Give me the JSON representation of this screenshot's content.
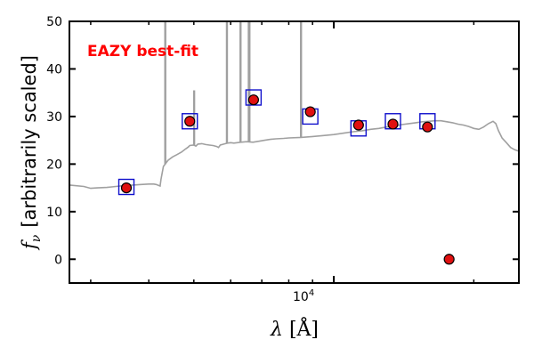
{
  "chart_data": {
    "type": "scatter",
    "title": "",
    "xlabel": "λ [Å]",
    "ylabel": "f_ν [arbitrarily scaled]",
    "ylabel_symbol": "f",
    "ylabel_subscript": "ν",
    "ylabel_text": "[arbitrarily scaled]",
    "xlabel_symbol": "λ",
    "xlabel_unit": "[Å]",
    "xscale": "log",
    "xlim": [
      2700,
      25000
    ],
    "ylim": [
      -5,
      50
    ],
    "grid": false,
    "y_ticks": [
      0,
      10,
      20,
      30,
      40,
      50
    ],
    "y_tick_labels": [
      "0",
      "10",
      "20",
      "30",
      "40",
      "50"
    ],
    "x_tick_major": [
      10000
    ],
    "x_tick_major_base": "10",
    "x_tick_major_exp": "4",
    "x_tick_minor": [
      3000,
      4000,
      5000,
      6000,
      7000,
      8000,
      9000,
      20000
    ],
    "annotation": {
      "text": "EAZY best-fit",
      "color": "#ff0000"
    },
    "colors": {
      "template": "#a0a0a0",
      "observed_fill": "#e01010",
      "observed_edge": "#000000",
      "model_box": "#1010cc"
    },
    "series": [
      {
        "kind": "template",
        "x": [
          2700,
          2900,
          3000,
          3100,
          3250,
          3400,
          3550,
          3700,
          3850,
          4000,
          4100,
          4150,
          4200,
          4230,
          4250,
          4300,
          4400,
          4500,
          4600,
          4700,
          4800,
          4850,
          4900,
          5000,
          5050,
          5100,
          5200,
          5300,
          5400,
          5500,
          5600,
          5650,
          5700,
          5800,
          5900,
          6000,
          6100,
          6300,
          6500,
          6700,
          6900,
          7100,
          7300,
          7500,
          7800,
          8000,
          8500,
          9000,
          9500,
          10000,
          10500,
          11000,
          11500,
          12000,
          12500,
          13000,
          13500,
          14000,
          14500,
          15000,
          15500,
          16000,
          16500,
          17000,
          17500,
          18000,
          18500,
          19000,
          19500,
          20000,
          20500,
          21000,
          21500,
          22000,
          22300,
          22600,
          23000,
          23500,
          24000,
          24500,
          25000
        ],
        "y": [
          15.6,
          15.3,
          14.9,
          15.0,
          15.1,
          15.3,
          15.5,
          15.6,
          15.7,
          15.8,
          15.8,
          15.7,
          15.5,
          15.4,
          16.8,
          19.5,
          20.8,
          21.5,
          22.0,
          22.5,
          23.2,
          23.5,
          23.9,
          24.0,
          23.8,
          24.2,
          24.3,
          24.1,
          24.0,
          23.9,
          23.7,
          23.5,
          24.0,
          24.2,
          24.4,
          24.5,
          24.4,
          24.6,
          24.7,
          24.6,
          24.8,
          25.0,
          25.2,
          25.3,
          25.4,
          25.5,
          25.6,
          25.8,
          26.0,
          26.2,
          26.5,
          26.8,
          27.0,
          27.3,
          27.5,
          27.8,
          28.0,
          28.3,
          28.5,
          28.7,
          28.9,
          29.0,
          29.1,
          29.1,
          28.9,
          28.7,
          28.4,
          28.2,
          27.9,
          27.5,
          27.3,
          27.8,
          28.5,
          29.0,
          28.5,
          27.0,
          25.5,
          24.5,
          23.5,
          23.0,
          22.7
        ]
      },
      {
        "kind": "emission_lines",
        "x": [
          4340,
          4861,
          4959,
          5007,
          5890,
          6300,
          6563,
          6584,
          8500
        ],
        "peak_y": [
          50,
          23.5,
          24,
          35.5,
          50,
          50,
          50,
          50,
          50
        ]
      },
      {
        "kind": "observed",
        "x": [
          3580,
          4900,
          6720,
          8900,
          11300,
          13400,
          15900,
          17700
        ],
        "y": [
          15.0,
          29.0,
          33.5,
          31.0,
          28.2,
          28.4,
          27.8,
          0
        ]
      },
      {
        "kind": "model",
        "x": [
          3580,
          4900,
          6720,
          8900,
          11300,
          13400,
          15900
        ],
        "y": [
          15.2,
          29.0,
          34.0,
          30.0,
          27.5,
          29.0,
          29.0
        ]
      }
    ]
  }
}
